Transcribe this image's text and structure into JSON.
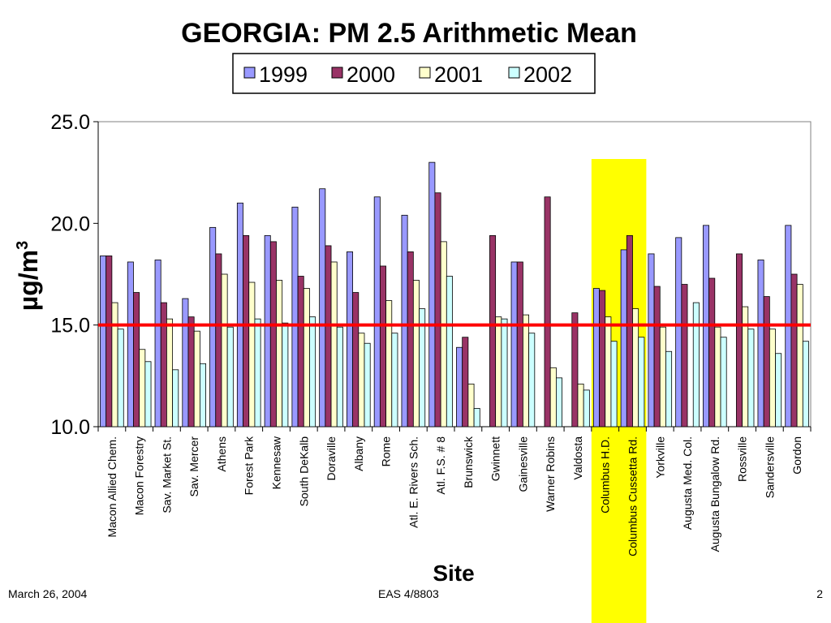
{
  "chart_data": {
    "type": "bar",
    "title": "GEORGIA: PM 2.5 Arithmetic Mean",
    "xlabel": "Site",
    "ylabel": "µg/m",
    "ylabel_superscript": "3",
    "ylim": [
      10,
      25
    ],
    "yticks": [
      "10.0",
      "15.0",
      "20.0",
      "25.0"
    ],
    "reference_line": {
      "value": 15.0,
      "color": "#ff0000"
    },
    "legend_position": "top",
    "grid": false,
    "highlight": {
      "categories": [
        "Columbus H.D.",
        "Columbus Cussetta Rd."
      ],
      "color": "#ffff00"
    },
    "categories": [
      "Macon Allied Chem.",
      "Macon Forestry",
      "Sav. Market St.",
      "Sav. Mercer",
      "Athens",
      "Forest Park",
      "Kennesaw",
      "South DeKalb",
      "Doraville",
      "Albany",
      "Rome",
      "Atl. E. Rivers Sch.",
      "Atl. F.S. # 8",
      "Brunswick",
      "Gwinnett",
      "Gainesville",
      "Warner Robins",
      "Valdosta",
      "Columbus H.D.",
      "Columbus Cussetta Rd.",
      "Yorkville",
      "Augusta Med. Col.",
      "Augusta Bungalow Rd.",
      "Rossville",
      "Sandersville",
      "Gordon"
    ],
    "series": [
      {
        "name": "1999",
        "color": "#9999ff",
        "values": [
          18.4,
          18.1,
          18.2,
          16.3,
          19.8,
          21.0,
          19.4,
          20.8,
          21.7,
          18.6,
          21.3,
          20.4,
          23.0,
          13.9,
          null,
          18.1,
          null,
          null,
          16.8,
          18.7,
          18.5,
          19.3,
          19.9,
          null,
          18.2,
          19.9
        ]
      },
      {
        "name": "2000",
        "color": "#993366",
        "values": [
          18.4,
          16.6,
          16.1,
          15.4,
          18.5,
          19.4,
          19.1,
          17.4,
          18.9,
          16.6,
          17.9,
          18.6,
          21.5,
          14.4,
          19.4,
          18.1,
          21.3,
          15.6,
          16.7,
          19.4,
          16.9,
          17.0,
          17.3,
          18.5,
          16.4,
          17.5
        ]
      },
      {
        "name": "2001",
        "color": "#ffffcc",
        "values": [
          16.1,
          13.8,
          15.3,
          14.7,
          17.5,
          17.1,
          17.2,
          16.8,
          18.1,
          14.6,
          16.2,
          17.2,
          19.1,
          12.1,
          15.4,
          15.5,
          12.9,
          12.1,
          15.4,
          15.8,
          14.9,
          null,
          14.9,
          15.9,
          14.8,
          17.0
        ]
      },
      {
        "name": "2002",
        "color": "#ccffff",
        "values": [
          14.8,
          13.2,
          12.8,
          13.1,
          14.9,
          15.3,
          15.1,
          15.4,
          14.9,
          14.1,
          14.6,
          15.8,
          17.4,
          10.9,
          15.3,
          14.6,
          12.4,
          11.8,
          14.2,
          14.4,
          13.7,
          16.1,
          14.4,
          14.8,
          13.6,
          14.2
        ]
      }
    ]
  },
  "footer": {
    "date": "March 26, 2004",
    "course": "EAS 4/8803",
    "page": "2"
  }
}
